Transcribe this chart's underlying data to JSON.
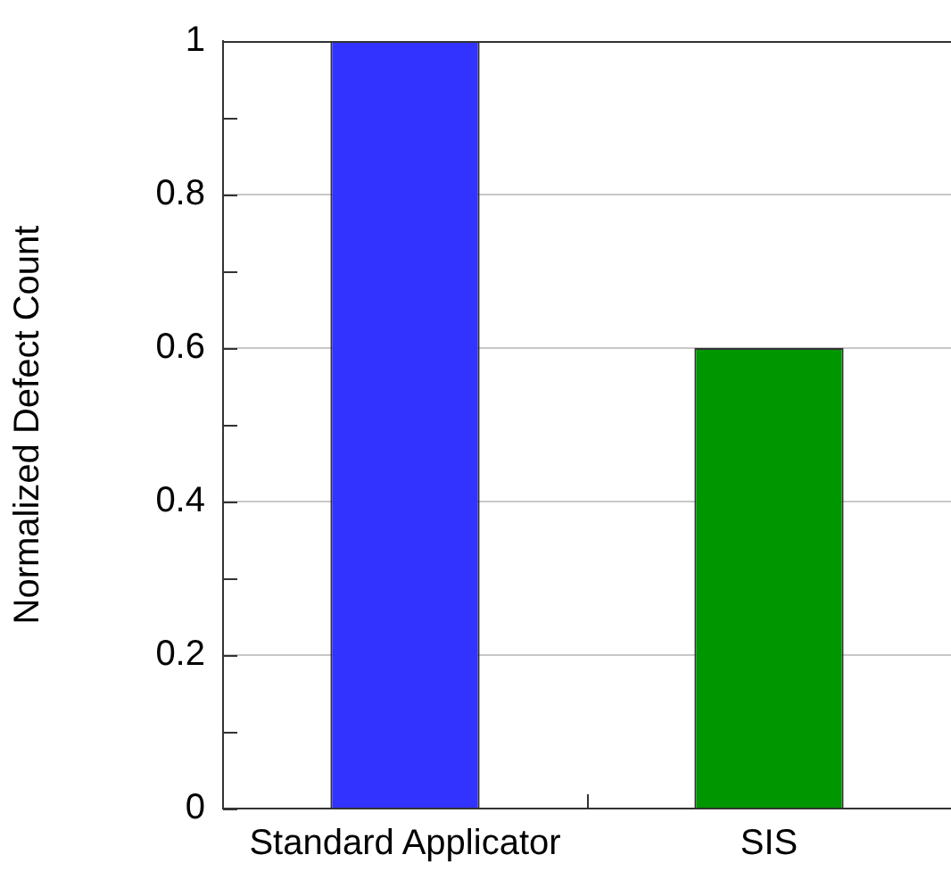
{
  "chart_data": {
    "type": "bar",
    "ylabel": "Normalized Defect Count",
    "categories": [
      "Standard Applicator",
      "SIS"
    ],
    "values": [
      1,
      0.6
    ],
    "colors": [
      "#3333ff",
      "#009600"
    ],
    "ylim": [
      0,
      1
    ],
    "yticks": [
      0,
      {
        "value": 0.1,
        "label": null
      },
      0.2,
      {
        "value": 0.3,
        "label": null
      },
      0.4,
      {
        "value": 0.5,
        "label": null
      },
      0.6,
      {
        "value": 0.7,
        "label": null
      },
      0.8,
      {
        "value": 0.9,
        "label": null
      },
      1
    ],
    "grid": "y"
  }
}
